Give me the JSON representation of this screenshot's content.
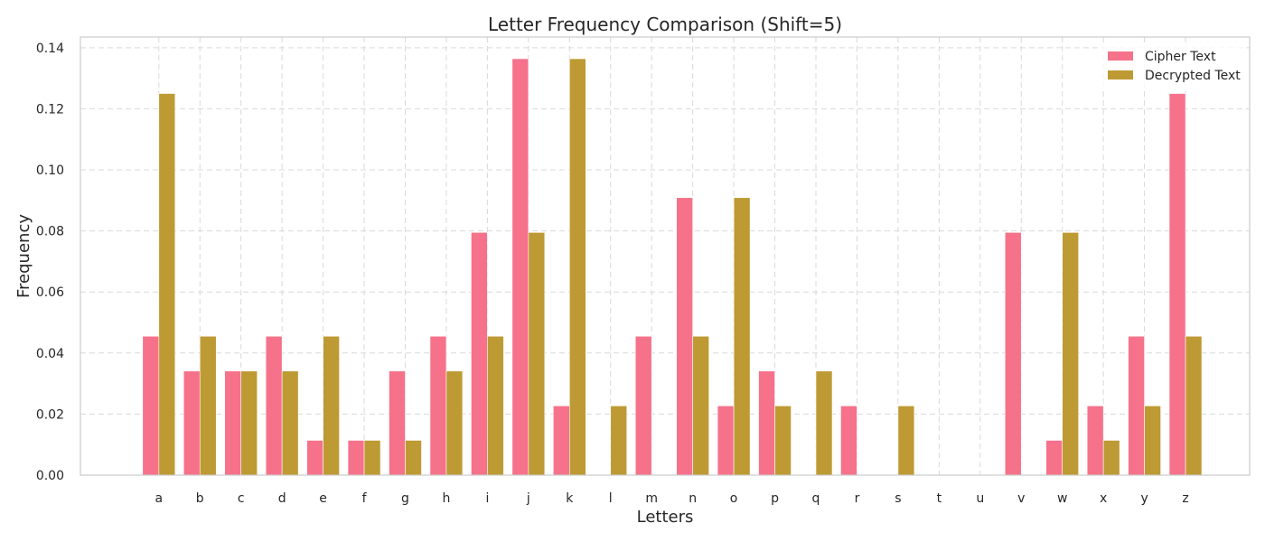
{
  "chart_data": {
    "type": "bar",
    "title": "Letter Frequency Comparison (Shift=5)",
    "xlabel": "Letters",
    "ylabel": "Frequency",
    "ylim": [
      0,
      0.1435
    ],
    "yticks": [
      "0.00",
      "0.02",
      "0.04",
      "0.06",
      "0.08",
      "0.10",
      "0.12",
      "0.14"
    ],
    "ytick_values": [
      0,
      0.02,
      0.04,
      0.06,
      0.08,
      0.1,
      0.12,
      0.14
    ],
    "grid": true,
    "legend_position": "top-right",
    "categories": [
      "a",
      "b",
      "c",
      "d",
      "e",
      "f",
      "g",
      "h",
      "i",
      "j",
      "k",
      "l",
      "m",
      "n",
      "o",
      "p",
      "q",
      "r",
      "s",
      "t",
      "u",
      "v",
      "w",
      "x",
      "y",
      "z"
    ],
    "series": [
      {
        "name": "Cipher Text",
        "color": "#f6718a",
        "values": [
          0.0455,
          0.0341,
          0.0341,
          0.0455,
          0.0114,
          0.0114,
          0.0341,
          0.0455,
          0.0795,
          0.1364,
          0.0227,
          0,
          0.0455,
          0.0909,
          0.0227,
          0.0341,
          0,
          0.0227,
          0,
          0,
          0,
          0.0795,
          0.0114,
          0.0227,
          0.0455,
          0.125
        ]
      },
      {
        "name": "Decrypted Text",
        "color": "#bd9a33",
        "values": [
          0.125,
          0.0455,
          0.0341,
          0.0341,
          0.0455,
          0.0114,
          0.0114,
          0.0341,
          0.0455,
          0.0795,
          0.1364,
          0.0227,
          0,
          0.0455,
          0.0909,
          0.0227,
          0.0341,
          0,
          0.0227,
          0,
          0,
          0,
          0.0795,
          0.0114,
          0.0227,
          0.0455
        ]
      }
    ]
  }
}
